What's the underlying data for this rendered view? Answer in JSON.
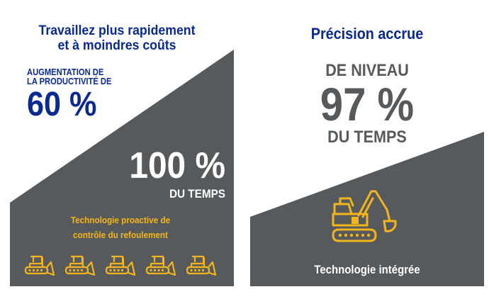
{
  "colors": {
    "brand_blue": "#0a2a8f",
    "panel_gray": "#565a5d",
    "accent_yellow": "#f3b51b",
    "white": "#ffffff"
  },
  "left_panel": {
    "title": [
      "Travaillez plus rapidement",
      "et à moindres coûts"
    ],
    "productivity_label": [
      "AUGMENTATION DE",
      "LA PRODUCTIVITÉ DE"
    ],
    "productivity_value": "60 %",
    "time_value": "100 %",
    "time_label": "DU TEMPS",
    "technology_caption": [
      "Technologie proactive de",
      "contrôle du refoulement"
    ],
    "icons": [
      "bulldozer-icon",
      "bulldozer-icon",
      "bulldozer-icon",
      "bulldozer-icon",
      "bulldozer-icon"
    ]
  },
  "right_panel": {
    "title": "Précision accrue",
    "accuracy_prefix": "DE NIVEAU",
    "accuracy_value": "97 %",
    "accuracy_label": "DU TEMPS",
    "technology_caption": "Technologie intégrée",
    "icon": "excavator-icon"
  }
}
